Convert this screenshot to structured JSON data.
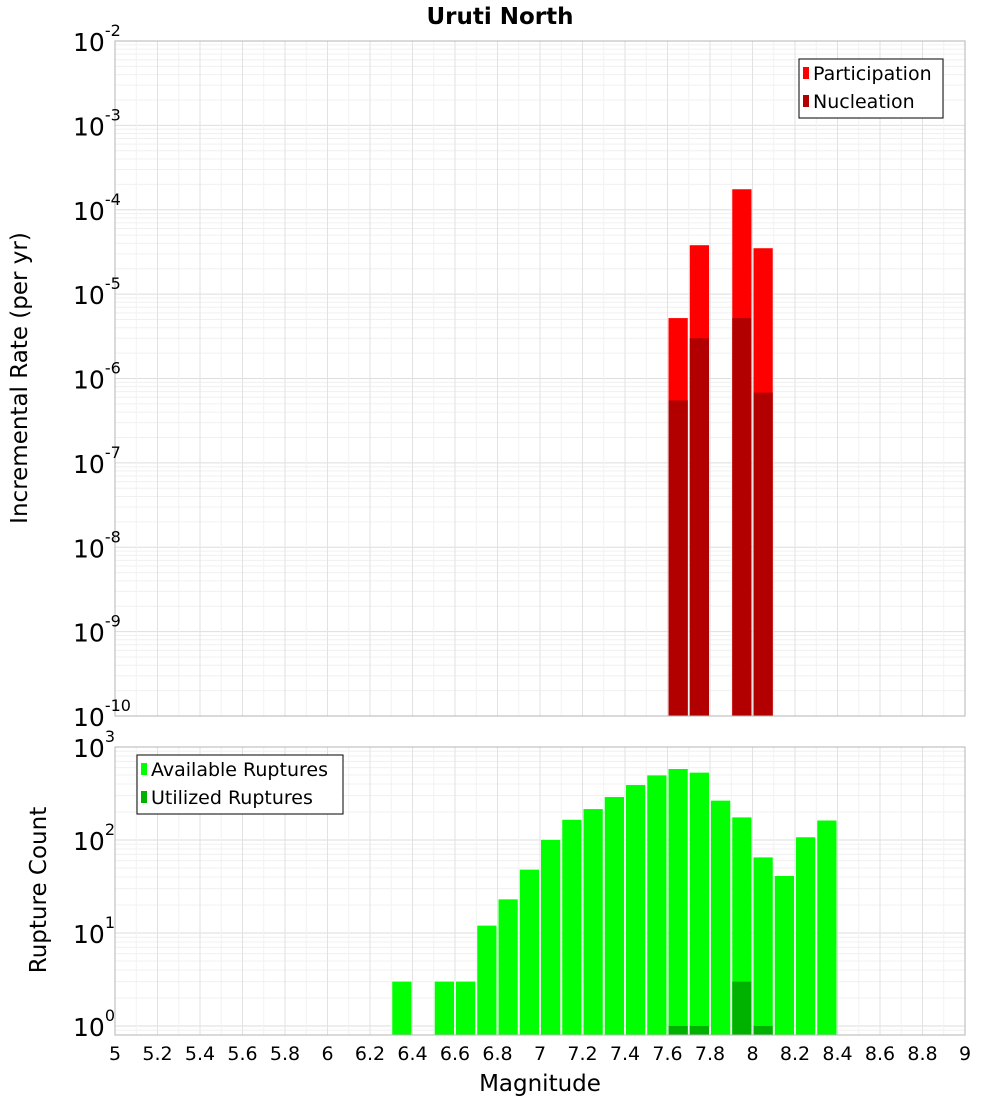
{
  "chart_data": {
    "type": "bar",
    "title": "Uruti North",
    "x": {
      "label": "Magnitude",
      "range": [
        5,
        9
      ],
      "bin_width": 0.1,
      "ticks": [
        "5",
        "5.2",
        "5.4",
        "5.6",
        "5.8",
        "6",
        "6.2",
        "6.4",
        "6.6",
        "6.8",
        "7",
        "7.2",
        "7.4",
        "7.6",
        "7.8",
        "8",
        "8.2",
        "8.4",
        "8.6",
        "8.8",
        "9"
      ]
    },
    "panels": [
      {
        "id": "rate",
        "ylabel": "Incremental Rate (per yr)",
        "yscale": "log",
        "ylim": [
          1e-10,
          0.01
        ],
        "ytick_exponents": [
          -10,
          -9,
          -8,
          -7,
          -6,
          -5,
          -4,
          -3,
          -2
        ],
        "legend": {
          "position": "top-right"
        },
        "series": [
          {
            "name": "Participation",
            "color": "#ff0000",
            "points": [
              [
                7.65,
                5.2e-06
              ],
              [
                7.75,
                3.8e-05
              ],
              [
                7.95,
                0.000175
              ],
              [
                8.05,
                3.5e-05
              ]
            ]
          },
          {
            "name": "Nucleation",
            "color": "#b20000",
            "points": [
              [
                7.65,
                5.5e-07
              ],
              [
                7.75,
                3e-06
              ],
              [
                7.95,
                5.2e-06
              ],
              [
                8.05,
                6.8e-07
              ]
            ]
          }
        ]
      },
      {
        "id": "count",
        "ylabel": "Rupture Count",
        "yscale": "log",
        "ylim": [
          0.8,
          1000
        ],
        "ytick_exponents": [
          0,
          1,
          2,
          3
        ],
        "legend": {
          "position": "top-left"
        },
        "series": [
          {
            "name": "Available Ruptures",
            "color": "#00ff00",
            "points": [
              [
                6.35,
                3
              ],
              [
                6.55,
                3
              ],
              [
                6.65,
                3
              ],
              [
                6.75,
                12
              ],
              [
                6.85,
                23
              ],
              [
                6.95,
                48
              ],
              [
                7.05,
                100
              ],
              [
                7.15,
                165
              ],
              [
                7.25,
                215
              ],
              [
                7.35,
                290
              ],
              [
                7.45,
                390
              ],
              [
                7.55,
                495
              ],
              [
                7.65,
                580
              ],
              [
                7.75,
                530
              ],
              [
                7.85,
                265
              ],
              [
                7.95,
                175
              ],
              [
                8.05,
                65
              ],
              [
                8.15,
                41
              ],
              [
                8.25,
                107
              ],
              [
                8.35,
                162
              ]
            ]
          },
          {
            "name": "Utilized Ruptures",
            "color": "#00b200",
            "points": [
              [
                7.65,
                1
              ],
              [
                7.75,
                1
              ],
              [
                7.95,
                3
              ],
              [
                8.05,
                1
              ]
            ]
          }
        ]
      }
    ]
  }
}
